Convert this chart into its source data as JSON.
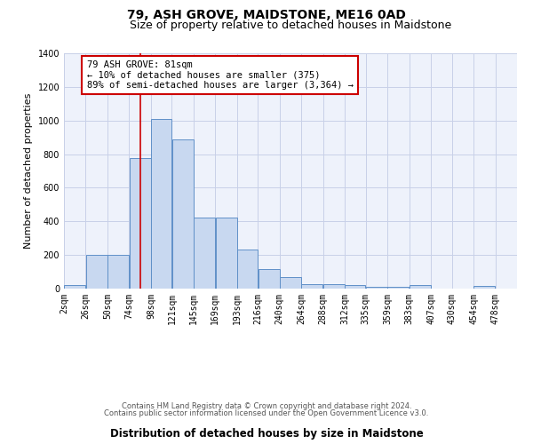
{
  "title": "79, ASH GROVE, MAIDSTONE, ME16 0AD",
  "subtitle": "Size of property relative to detached houses in Maidstone",
  "xlabel": "Distribution of detached houses by size in Maidstone",
  "ylabel": "Number of detached properties",
  "footnote1": "Contains HM Land Registry data © Crown copyright and database right 2024.",
  "footnote2": "Contains public sector information licensed under the Open Government Licence v3.0.",
  "annotation_line1": "79 ASH GROVE: 81sqm",
  "annotation_line2": "← 10% of detached houses are smaller (375)",
  "annotation_line3": "89% of semi-detached houses are larger (3,364) →",
  "bar_color": "#c8d8f0",
  "bar_edge_color": "#6090c8",
  "red_line_x": 86,
  "red_line_color": "#cc0000",
  "annotation_box_color": "#cc0000",
  "bin_edges": [
    2,
    26,
    50,
    74,
    98,
    121,
    145,
    169,
    193,
    216,
    240,
    264,
    288,
    312,
    335,
    359,
    383,
    407,
    430,
    454,
    478,
    502
  ],
  "bar_heights": [
    20,
    200,
    200,
    775,
    1010,
    885,
    425,
    425,
    235,
    115,
    70,
    25,
    25,
    20,
    10,
    10,
    20,
    0,
    0,
    15,
    0
  ],
  "xlim": [
    2,
    502
  ],
  "ylim": [
    0,
    1400
  ],
  "yticks": [
    0,
    200,
    400,
    600,
    800,
    1000,
    1200,
    1400
  ],
  "xtick_labels": [
    "2sqm",
    "26sqm",
    "50sqm",
    "74sqm",
    "98sqm",
    "121sqm",
    "145sqm",
    "169sqm",
    "193sqm",
    "216sqm",
    "240sqm",
    "264sqm",
    "288sqm",
    "312sqm",
    "335sqm",
    "359sqm",
    "383sqm",
    "407sqm",
    "430sqm",
    "454sqm",
    "478sqm"
  ],
  "xtick_positions": [
    2,
    26,
    50,
    74,
    98,
    121,
    145,
    169,
    193,
    216,
    240,
    264,
    288,
    312,
    335,
    359,
    383,
    407,
    430,
    454,
    478
  ],
  "bg_color": "#eef2fb",
  "grid_color": "#c8d0e8",
  "title_fontsize": 10,
  "subtitle_fontsize": 9,
  "axis_label_fontsize": 8.5,
  "ylabel_fontsize": 8,
  "tick_fontsize": 7,
  "annot_fontsize": 7.5,
  "footnote_fontsize": 6
}
